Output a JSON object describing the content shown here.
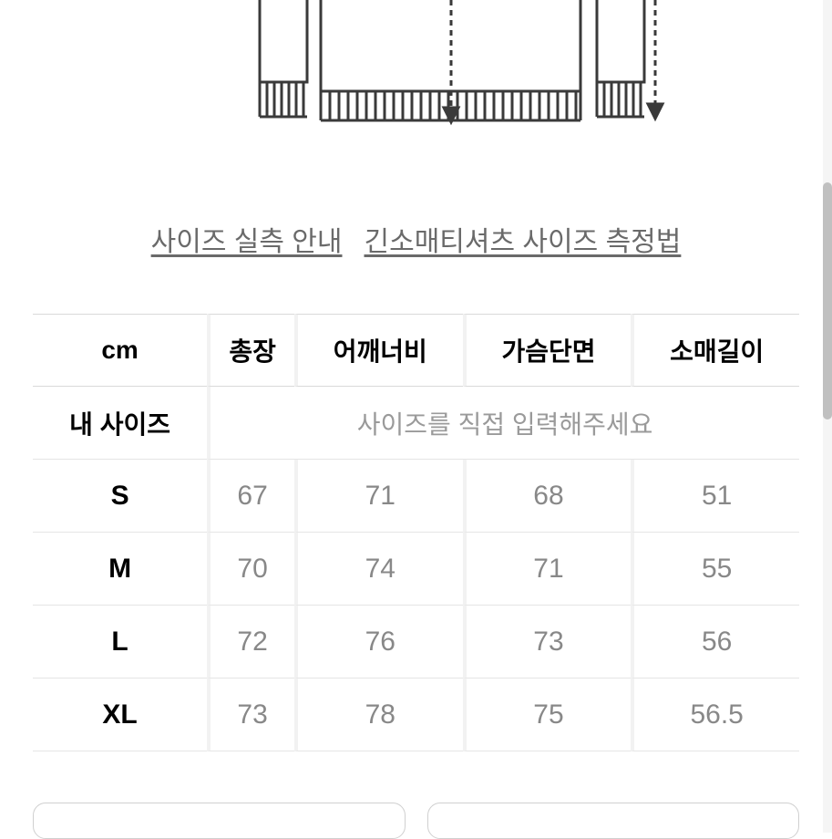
{
  "links": {
    "guide1": "사이즈 실측 안내",
    "guide2": "긴소매티셔츠 사이즈 측정법"
  },
  "table": {
    "headers": {
      "unit": "cm",
      "col1": "총장",
      "col2": "어깨너비",
      "col3": "가슴단면",
      "col4": "소매길이"
    },
    "mySize": {
      "label": "내 사이즈",
      "prompt": "사이즈를 직접 입력해주세요"
    },
    "rows": [
      {
        "label": "S",
        "values": [
          "67",
          "71",
          "68",
          "51"
        ]
      },
      {
        "label": "M",
        "values": [
          "70",
          "74",
          "71",
          "55"
        ]
      },
      {
        "label": "L",
        "values": [
          "72",
          "76",
          "73",
          "56"
        ]
      },
      {
        "label": "XL",
        "values": [
          "73",
          "78",
          "75",
          "56.5"
        ]
      }
    ]
  },
  "colors": {
    "bg": "#ffffff",
    "border": "#d9d9d9",
    "rowBorder": "#e5e5e5",
    "colGap": "#f2f2f2",
    "headerText": "#000000",
    "valueText": "#888888",
    "promptText": "#9a9a9a",
    "linkText": "#6a6a6a",
    "diagramStroke": "#3a3a3a"
  },
  "diagram": {
    "strokeWidth": 3,
    "dashArray": "6,5"
  },
  "scrollbar": {
    "thumbTop": 200,
    "thumbHeight": 260
  }
}
